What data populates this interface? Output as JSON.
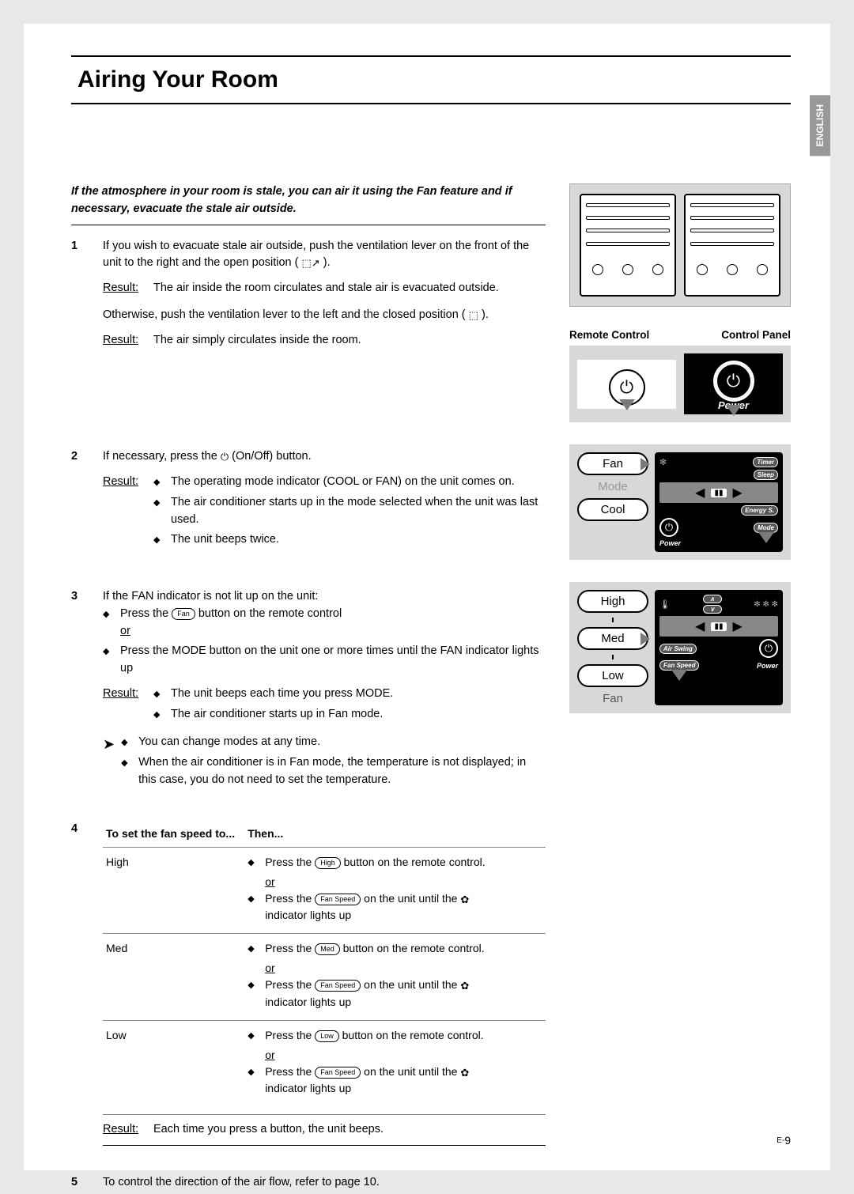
{
  "lang_tab": "ENGLISH",
  "title": "Airing Your Room",
  "intro": "If the atmosphere in your room is stale, you can air it using the Fan feature and if necessary, evacuate the stale air outside.",
  "side": {
    "remote_label": "Remote Control",
    "panel_label": "Control Panel",
    "power_label": "Power",
    "fan_label": "Fan",
    "mode_label": "Mode",
    "cool_label": "Cool",
    "high_label": "High",
    "med_label": "Med",
    "low_label": "Low",
    "fan_speed_label": "Fan",
    "timer_btn": "Timer",
    "sleep_btn": "Sleep",
    "energy_btn": "Energy S.",
    "mode_btn": "Mode",
    "airswing_btn": "Air Swing",
    "fanspeed_btn": "Fan Speed"
  },
  "steps": {
    "s1": {
      "num": "1",
      "text_a": "If you wish to evacuate stale air outside, push the ventilation lever on the front of the unit to the right and the open position (",
      "text_b": ").",
      "result_label": "Result:",
      "result_text": "The air inside the room circulates and stale air is evacuated outside.",
      "text_c": "Otherwise, push the ventilation lever to the left and the closed position (",
      "text_d": ").",
      "result_text2": "The air simply circulates inside the room."
    },
    "s2": {
      "num": "2",
      "text_a": "If necessary, press the",
      "text_b": "(On/Off) button.",
      "result_label": "Result:",
      "r1": "The operating mode indicator (COOL or FAN) on the unit comes on.",
      "r2": "The air conditioner starts up in the mode selected when the unit was last used.",
      "r3": "The unit beeps twice."
    },
    "s3": {
      "num": "3",
      "text_a": "If the FAN indicator is not lit up on the unit:",
      "b1a": "Press the",
      "b1b": "button on the remote control",
      "or": "or",
      "b2": "Press the MODE button on the unit one or more times until the FAN indicator lights up",
      "result_label": "Result:",
      "r1": "The unit beeps each time you press MODE.",
      "r2": "The air conditioner starts up in Fan mode.",
      "n1": "You can change modes at any time.",
      "n2": "When the air conditioner is in Fan mode, the temperature is not displayed; in this case, you do not need to set the temperature.",
      "fan_pill": "Fan"
    },
    "s4": {
      "num": "4",
      "th1": "To set the fan speed to...",
      "th2": "Then...",
      "rows": [
        {
          "speed": "High",
          "remote_pill": "High",
          "press_a": "Press the",
          "press_b": "button on the remote control.",
          "fs_a": "Press the",
          "fs_pill": "Fan Speed",
          "fs_b": "on the unit until the",
          "fs_c": "indicator lights up"
        },
        {
          "speed": "Med",
          "remote_pill": "Med",
          "press_a": "Press the",
          "press_b": "button on the remote control.",
          "fs_a": "Press the",
          "fs_pill": "Fan Speed",
          "fs_b": "on the unit until the",
          "fs_c": "indicator lights up"
        },
        {
          "speed": "Low",
          "remote_pill": "Low",
          "press_a": "Press the",
          "press_b": "button on the remote control.",
          "fs_a": "Press the",
          "fs_pill": "Fan Speed",
          "fs_b": "on the unit until the",
          "fs_c": "indicator lights up"
        }
      ],
      "result_label": "Result:",
      "result_text": "Each time you press a button, the unit beeps.",
      "or": "or"
    },
    "s5": {
      "num": "5",
      "text": "To control the direction of the air flow, refer to page 10."
    }
  },
  "page_no_prefix": "E-",
  "page_no": "9"
}
